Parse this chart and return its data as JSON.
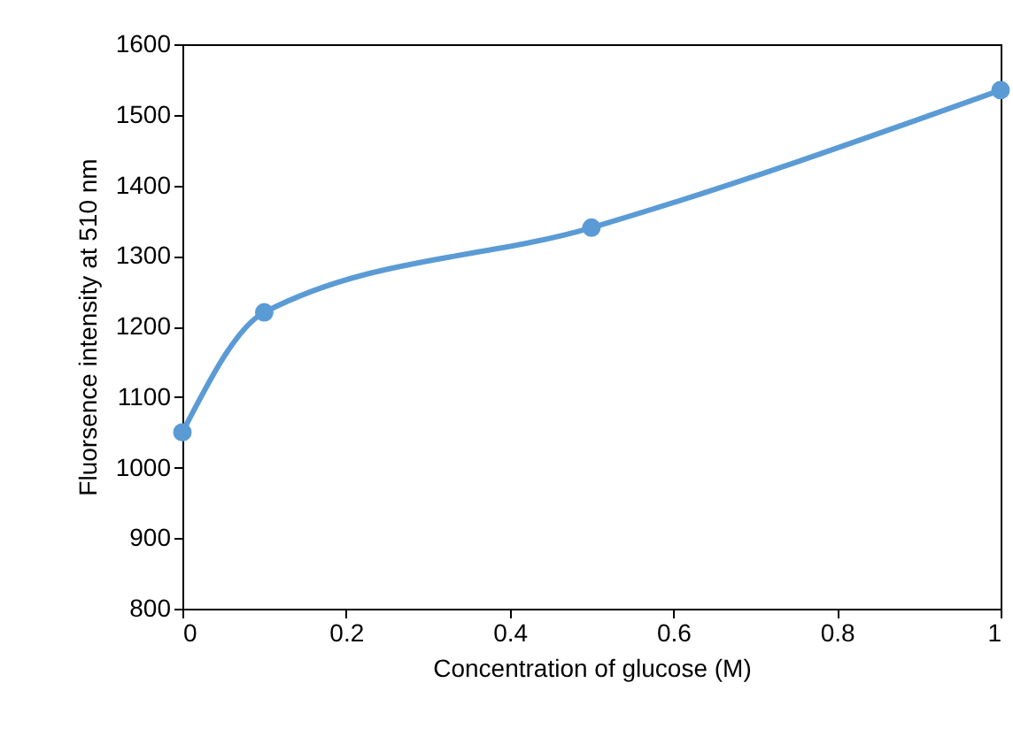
{
  "chart_data": {
    "type": "line",
    "xlabel": "Concentration of glucose (M)",
    "ylabel": "Fluorsence intensity at 510 nm",
    "x": [
      0,
      0.1,
      0.5,
      1
    ],
    "series": [
      {
        "color": "#5b9bd5",
        "values": [
          1050,
          1220,
          1340,
          1535
        ]
      }
    ],
    "xlim": [
      0,
      1
    ],
    "xticks": [
      0,
      0.2,
      0.4,
      0.6,
      0.8,
      1
    ],
    "ylim": [
      800,
      1600
    ],
    "yticks": [
      800,
      900,
      1000,
      1100,
      1200,
      1300,
      1400,
      1500,
      1600
    ],
    "marker": "circle",
    "line_style": "solid",
    "grid": false,
    "legend": false
  }
}
